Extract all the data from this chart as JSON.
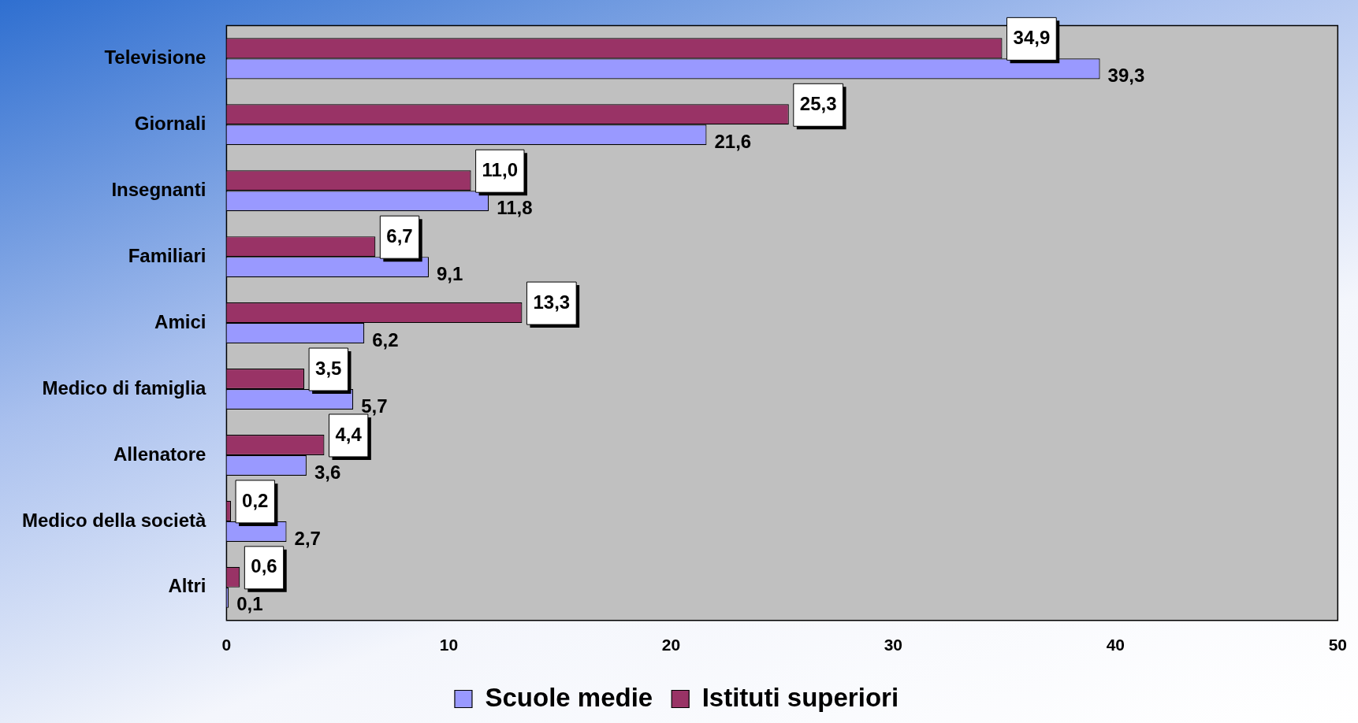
{
  "chart_data": {
    "type": "bar",
    "orientation": "horizontal",
    "categories": [
      "Televisione",
      "Giornali",
      "Insegnanti",
      "Familiari",
      "Amici",
      "Medico di famiglia",
      "Allenatore",
      "Medico della società",
      "Altri"
    ],
    "series": [
      {
        "name": "Scuole medie",
        "color": "#9999ff",
        "values": [
          39.3,
          21.6,
          11.8,
          9.1,
          6.2,
          5.7,
          3.6,
          2.7,
          0.1
        ],
        "value_labels": [
          "39,3",
          "21,6",
          "11,8",
          "9,1",
          "6,2",
          "5,7",
          "3,6",
          "2,7",
          "0,1"
        ]
      },
      {
        "name": "Istituti superiori",
        "color": "#993366",
        "values": [
          34.9,
          25.3,
          11.0,
          6.7,
          13.3,
          3.5,
          4.4,
          0.2,
          0.6
        ],
        "value_labels": [
          "34,9",
          "25,3",
          "11,0",
          "6,7",
          "13,3",
          "3,5",
          "4,4",
          "0,2",
          "0,6"
        ]
      }
    ],
    "xlim": [
      0,
      50
    ],
    "xticks": [
      0,
      10,
      20,
      30,
      40,
      50
    ],
    "grid": false,
    "legend": "bottom"
  }
}
